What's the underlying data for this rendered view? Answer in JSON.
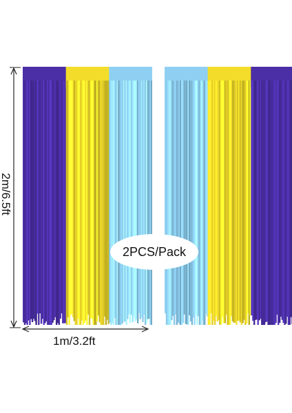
{
  "product": {
    "height_label": "2m/6.5ft",
    "width_label": "1m/3.2ft",
    "pack_label": "2PCS/Pack"
  },
  "colors": {
    "purple": "#4b2fa6",
    "yellow": "#f3dd2a",
    "blue": "#8fd0f2",
    "dimension_line": "#222222"
  },
  "curtains": [
    {
      "name": "left-curtain",
      "strips": [
        "purple",
        "yellow",
        "blue"
      ]
    },
    {
      "name": "right-curtain",
      "strips": [
        "blue",
        "yellow",
        "purple"
      ]
    }
  ]
}
